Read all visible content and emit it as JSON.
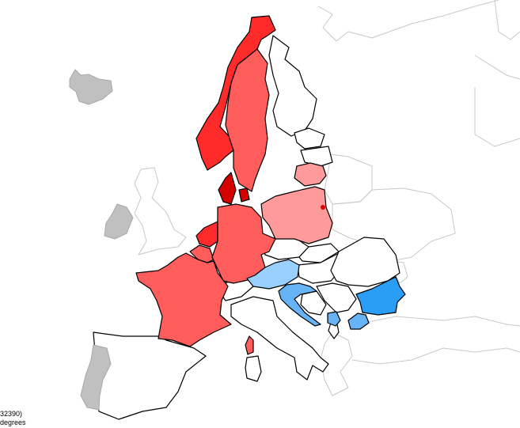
{
  "caption": {
    "line1": "32390)",
    "line2": "degrees"
  },
  "colors": {
    "dark_red": "#d40000",
    "red": "#ff2b2b",
    "medium_red": "#ff5c5c",
    "light_red": "#ff9a9a",
    "light_blue": "#99d0ff",
    "medium_blue": "#66b3f5",
    "blue": "#2a9df4",
    "no_data": "#c0c0c0",
    "no_value": "#ffffff"
  },
  "regions": [
    {
      "id": "norway",
      "color": "red"
    },
    {
      "id": "sweden",
      "color": "medium_red"
    },
    {
      "id": "denmark",
      "color": "dark_red"
    },
    {
      "id": "netherlands",
      "color": "red"
    },
    {
      "id": "belgium",
      "color": "medium_red"
    },
    {
      "id": "germany",
      "color": "medium_red"
    },
    {
      "id": "france",
      "color": "medium_red"
    },
    {
      "id": "corsica",
      "color": "medium_red"
    },
    {
      "id": "poland",
      "color": "light_red"
    },
    {
      "id": "lithuania",
      "color": "light_red"
    },
    {
      "id": "austria",
      "color": "light_blue"
    },
    {
      "id": "croatia",
      "color": "medium_blue"
    },
    {
      "id": "montenegro",
      "color": "medium_blue"
    },
    {
      "id": "bulgaria",
      "color": "blue"
    },
    {
      "id": "north-macedonia",
      "color": "medium_blue"
    },
    {
      "id": "iceland",
      "color": "no_data"
    },
    {
      "id": "ireland",
      "color": "no_data"
    },
    {
      "id": "portugal",
      "color": "no_data"
    }
  ]
}
